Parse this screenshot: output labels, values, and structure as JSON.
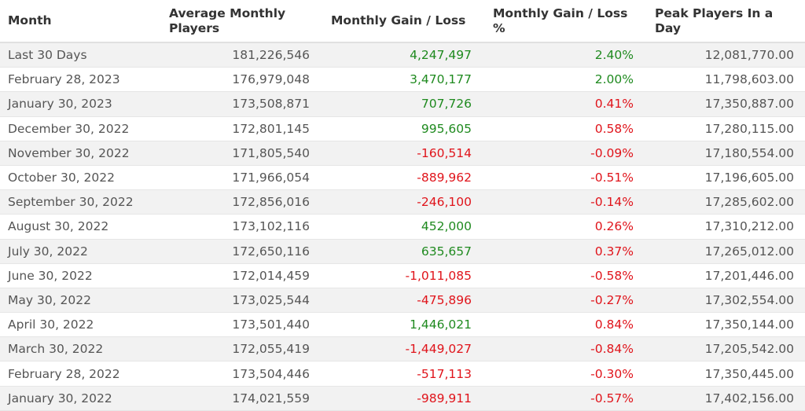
{
  "header": {
    "columns": [
      "Month",
      "Average Monthly Players",
      "Monthly Gain / Loss",
      "Monthly Gain / Loss %",
      "Peak Players In a Day"
    ]
  },
  "table": {
    "rows": [
      {
        "month": "Last 30 Days",
        "avg": "181,226,546",
        "gain": "4,247,497",
        "gain_color": "#1f8a1f",
        "pct": "2.40%",
        "pct_color": "#1f8a1f",
        "peak": "12,081,770.00"
      },
      {
        "month": "February 28, 2023",
        "avg": "176,979,048",
        "gain": "3,470,177",
        "gain_color": "#1f8a1f",
        "pct": "2.00%",
        "pct_color": "#1f8a1f",
        "peak": "11,798,603.00"
      },
      {
        "month": "January 30, 2023",
        "avg": "173,508,871",
        "gain": "707,726",
        "gain_color": "#1f8a1f",
        "pct": "0.41%",
        "pct_color": "#e0141b",
        "peak": "17,350,887.00"
      },
      {
        "month": "December 30, 2022",
        "avg": "172,801,145",
        "gain": "995,605",
        "gain_color": "#1f8a1f",
        "pct": "0.58%",
        "pct_color": "#e0141b",
        "peak": "17,280,115.00"
      },
      {
        "month": "November 30, 2022",
        "avg": "171,805,540",
        "gain": "-160,514",
        "gain_color": "#e0141b",
        "pct": "-0.09%",
        "pct_color": "#e0141b",
        "peak": "17,180,554.00"
      },
      {
        "month": "October 30, 2022",
        "avg": "171,966,054",
        "gain": "-889,962",
        "gain_color": "#e0141b",
        "pct": "-0.51%",
        "pct_color": "#e0141b",
        "peak": "17,196,605.00"
      },
      {
        "month": "September 30, 2022",
        "avg": "172,856,016",
        "gain": "-246,100",
        "gain_color": "#e0141b",
        "pct": "-0.14%",
        "pct_color": "#e0141b",
        "peak": "17,285,602.00"
      },
      {
        "month": "August 30, 2022",
        "avg": "173,102,116",
        "gain": "452,000",
        "gain_color": "#1f8a1f",
        "pct": "0.26%",
        "pct_color": "#e0141b",
        "peak": "17,310,212.00"
      },
      {
        "month": "July 30, 2022",
        "avg": "172,650,116",
        "gain": "635,657",
        "gain_color": "#1f8a1f",
        "pct": "0.37%",
        "pct_color": "#e0141b",
        "peak": "17,265,012.00"
      },
      {
        "month": "June 30, 2022",
        "avg": "172,014,459",
        "gain": "-1,011,085",
        "gain_color": "#e0141b",
        "pct": "-0.58%",
        "pct_color": "#e0141b",
        "peak": "17,201,446.00"
      },
      {
        "month": "May 30, 2022",
        "avg": "173,025,544",
        "gain": "-475,896",
        "gain_color": "#e0141b",
        "pct": "-0.27%",
        "pct_color": "#e0141b",
        "peak": "17,302,554.00"
      },
      {
        "month": "April 30, 2022",
        "avg": "173,501,440",
        "gain": "1,446,021",
        "gain_color": "#1f8a1f",
        "pct": "0.84%",
        "pct_color": "#e0141b",
        "peak": "17,350,144.00"
      },
      {
        "month": "March 30, 2022",
        "avg": "172,055,419",
        "gain": "-1,449,027",
        "gain_color": "#e0141b",
        "pct": "-0.84%",
        "pct_color": "#e0141b",
        "peak": "17,205,542.00"
      },
      {
        "month": "February 28, 2022",
        "avg": "173,504,446",
        "gain": "-517,113",
        "gain_color": "#e0141b",
        "pct": "-0.30%",
        "pct_color": "#e0141b",
        "peak": "17,350,445.00"
      },
      {
        "month": "January 30, 2022",
        "avg": "174,021,559",
        "gain": "-989,911",
        "gain_color": "#e0141b",
        "pct": "-0.57%",
        "pct_color": "#e0141b",
        "peak": "17,402,156.00"
      }
    ]
  }
}
